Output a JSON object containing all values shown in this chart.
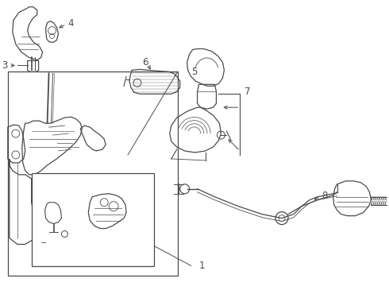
{
  "bg_color": "#ffffff",
  "line_color": "#4a4a4a",
  "label_color": "#000000",
  "label_fontsize": 8.5,
  "fig_width": 4.9,
  "fig_height": 3.6,
  "dpi": 100
}
